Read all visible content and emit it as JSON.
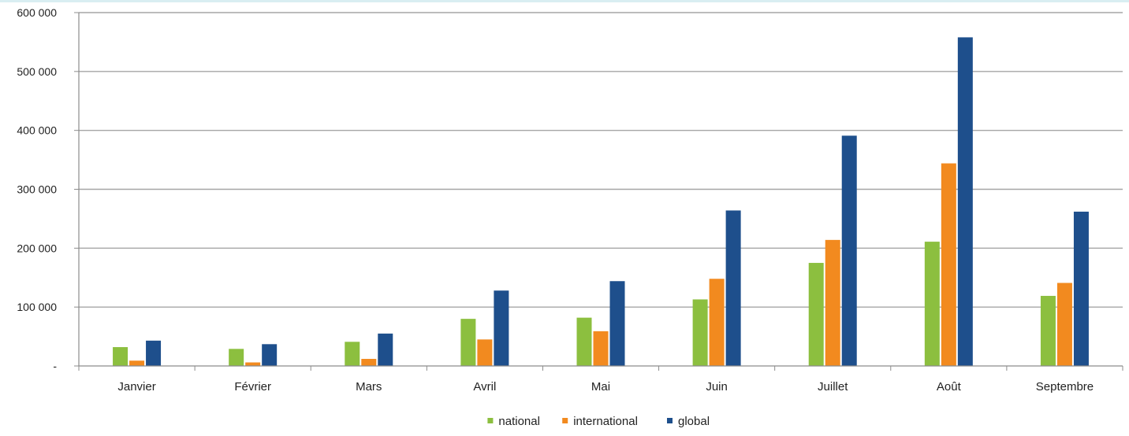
{
  "chart_data": {
    "type": "bar",
    "categories": [
      "Janvier",
      "Février",
      "Mars",
      "Avril",
      "Mai",
      "Juin",
      "Juillet",
      "Août",
      "Septembre"
    ],
    "series": [
      {
        "name": "national",
        "color": "#8cbf3f",
        "values": [
          32000,
          29000,
          41000,
          80000,
          82000,
          113000,
          175000,
          211000,
          119000
        ]
      },
      {
        "name": "international",
        "color": "#f28a1f",
        "values": [
          9000,
          6000,
          12000,
          45000,
          59000,
          148000,
          214000,
          344000,
          141000
        ]
      },
      {
        "name": "global",
        "color": "#1e4f8c",
        "values": [
          43000,
          37000,
          55000,
          128000,
          144000,
          264000,
          391000,
          558000,
          262000
        ]
      }
    ],
    "ylim": [
      0,
      600000
    ],
    "y_ticks": [
      0,
      100000,
      200000,
      300000,
      400000,
      500000,
      600000
    ],
    "y_tick_labels": [
      "-",
      "100 000",
      "200 000",
      "300 000",
      "400 000",
      "500 000",
      "600 000"
    ],
    "grid": true,
    "legend_position": "bottom",
    "gridline_color": "#a6a6a6",
    "axis_color": "#8c8c8c"
  }
}
